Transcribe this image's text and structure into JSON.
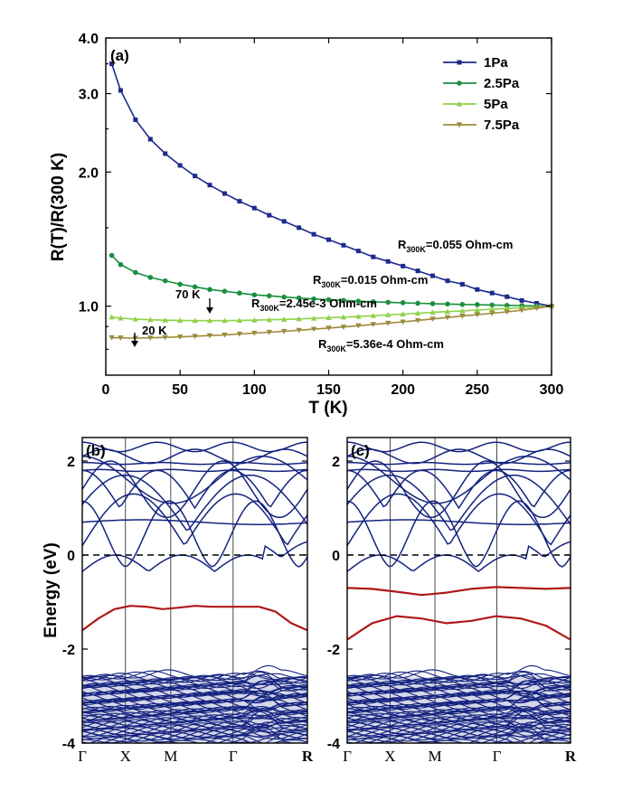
{
  "colors": {
    "1Pa": "#1c2a8c",
    "2.5Pa": "#1a8f3f",
    "5Pa": "#8fd24a",
    "7.5Pa": "#9c8a3c",
    "band": "#14237f",
    "band_highlight": "#b01818"
  },
  "chart_data": [
    {
      "type": "line",
      "panel_label": "(a)",
      "xlabel": "T (K)",
      "ylabel": "R(T)/R(300 K)",
      "xlim": [
        0,
        300
      ],
      "ylim": [
        0.7,
        4.0
      ],
      "yscale": "log",
      "xticks": [
        "0",
        "50",
        "100",
        "150",
        "200",
        "250",
        "300"
      ],
      "yticks": [
        "1.0",
        "2.0",
        "3.0",
        "4.0"
      ],
      "legend_position": "top-right",
      "series": [
        {
          "name": "1Pa",
          "marker": "square",
          "x": [
            4,
            10,
            20,
            30,
            40,
            50,
            60,
            70,
            80,
            90,
            100,
            110,
            120,
            130,
            140,
            150,
            160,
            170,
            180,
            190,
            200,
            210,
            220,
            230,
            240,
            250,
            260,
            270,
            280,
            290,
            300
          ],
          "y": [
            3.5,
            3.05,
            2.62,
            2.37,
            2.2,
            2.07,
            1.96,
            1.87,
            1.79,
            1.72,
            1.66,
            1.6,
            1.55,
            1.5,
            1.45,
            1.41,
            1.37,
            1.33,
            1.29,
            1.26,
            1.23,
            1.2,
            1.17,
            1.14,
            1.12,
            1.09,
            1.07,
            1.05,
            1.03,
            1.015,
            1.0
          ]
        },
        {
          "name": "2.5Pa",
          "marker": "circle",
          "x": [
            4,
            10,
            20,
            30,
            40,
            50,
            60,
            70,
            80,
            90,
            100,
            110,
            120,
            130,
            140,
            150,
            160,
            170,
            180,
            190,
            200,
            210,
            220,
            230,
            240,
            250,
            260,
            270,
            280,
            290,
            300
          ],
          "y": [
            1.3,
            1.24,
            1.19,
            1.16,
            1.14,
            1.12,
            1.105,
            1.09,
            1.08,
            1.07,
            1.06,
            1.055,
            1.048,
            1.043,
            1.038,
            1.034,
            1.03,
            1.026,
            1.023,
            1.02,
            1.018,
            1.015,
            1.013,
            1.011,
            1.009,
            1.008,
            1.006,
            1.004,
            1.003,
            1.001,
            1.0
          ]
        },
        {
          "name": "5Pa",
          "marker": "triangle-up",
          "x": [
            4,
            10,
            20,
            30,
            40,
            50,
            60,
            70,
            80,
            90,
            100,
            110,
            120,
            130,
            140,
            150,
            160,
            170,
            180,
            190,
            200,
            210,
            220,
            230,
            240,
            250,
            260,
            270,
            280,
            290,
            300
          ],
          "y": [
            0.945,
            0.94,
            0.935,
            0.932,
            0.93,
            0.929,
            0.928,
            0.928,
            0.928,
            0.929,
            0.93,
            0.932,
            0.934,
            0.936,
            0.939,
            0.942,
            0.945,
            0.948,
            0.952,
            0.956,
            0.96,
            0.964,
            0.968,
            0.972,
            0.976,
            0.98,
            0.984,
            0.988,
            0.992,
            0.996,
            1.0
          ]
        },
        {
          "name": "7.5Pa",
          "marker": "triangle-down",
          "x": [
            4,
            10,
            20,
            30,
            40,
            50,
            60,
            70,
            80,
            90,
            100,
            110,
            120,
            130,
            140,
            150,
            160,
            170,
            180,
            190,
            200,
            210,
            220,
            230,
            240,
            250,
            260,
            270,
            280,
            290,
            300
          ],
          "y": [
            0.85,
            0.849,
            0.848,
            0.849,
            0.851,
            0.853,
            0.856,
            0.859,
            0.862,
            0.866,
            0.87,
            0.874,
            0.878,
            0.883,
            0.888,
            0.893,
            0.898,
            0.904,
            0.91,
            0.916,
            0.922,
            0.929,
            0.936,
            0.943,
            0.95,
            0.957,
            0.964,
            0.971,
            0.979,
            0.99,
            1.0
          ]
        }
      ],
      "annotations": {
        "r1_main": "R",
        "r1_sub": "300K",
        "r1_value": "=0.055 Ohm-cm",
        "r2_main": "R",
        "r2_sub": "300K",
        "r2_value": "=0.015 Ohm-cm",
        "r3_main": "R",
        "r3_sub": "300K",
        "r3_value": "=2.45e-3 Ohm-cm",
        "r4_main": "R",
        "r4_sub": "300K",
        "r4_value": "=5.36e-4 Ohm-cm",
        "arrow1": "70 K",
        "arrow2": "20 K"
      }
    },
    {
      "type": "line",
      "panel_label": "(b)",
      "ylabel": "Energy (eV)",
      "ylim": [
        -4,
        2.5
      ],
      "yticks": [
        "2",
        "0",
        "-2",
        "-4"
      ],
      "kpoints": [
        "Γ",
        "X",
        "M",
        "Γ",
        "R"
      ],
      "fermi_level": 0,
      "highlighted_band": [
        -1.6,
        -1.35,
        -1.15,
        -1.08,
        -1.1,
        -1.15,
        -1.12,
        -1.08,
        -1.1,
        -1.1,
        -1.1,
        -1.1,
        -1.2,
        -1.45,
        -1.6
      ]
    },
    {
      "type": "line",
      "panel_label": "(c)",
      "ylim": [
        -4,
        2.5
      ],
      "yticks": [
        "2",
        "0",
        "-2",
        "-4"
      ],
      "kpoints": [
        "Γ",
        "X",
        "M",
        "Γ",
        "R"
      ],
      "fermi_level": 0,
      "highlighted_bands": [
        [
          -0.7,
          -0.72,
          -0.78,
          -0.85,
          -0.8,
          -0.72,
          -0.68,
          -0.7,
          -0.72,
          -0.7
        ],
        [
          -1.8,
          -1.45,
          -1.3,
          -1.35,
          -1.45,
          -1.4,
          -1.3,
          -1.35,
          -1.5,
          -1.8
        ]
      ]
    }
  ]
}
